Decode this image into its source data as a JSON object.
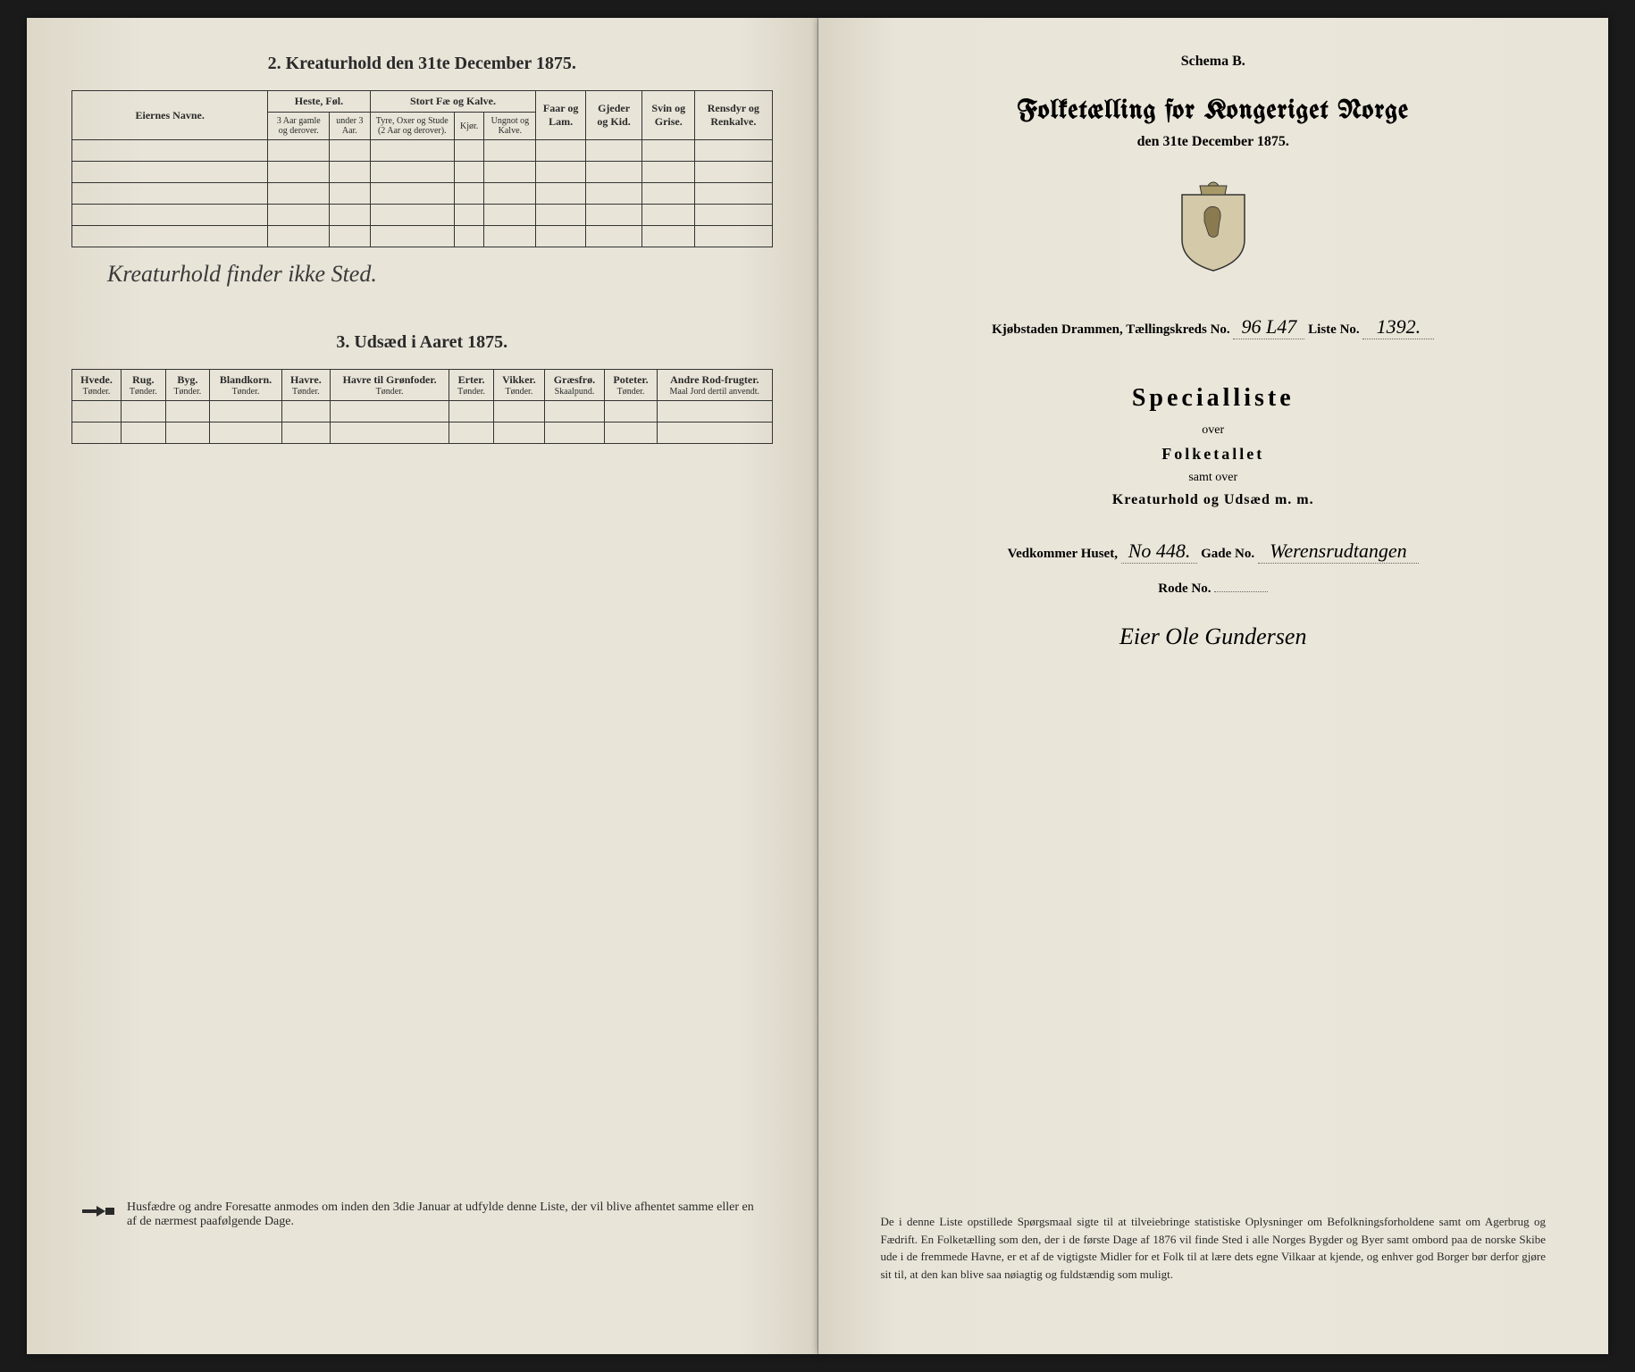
{
  "left_page": {
    "section2": {
      "title": "2. Kreaturhold den 31te December 1875.",
      "col_owner": "Eiernes Navne.",
      "group_heste": "Heste, Føl.",
      "heste_sub1": "3 Aar gamle og derover.",
      "heste_sub2": "under 3 Aar.",
      "group_stortfe": "Stort Fæ og Kalve.",
      "stortfe_sub1": "Tyre, Oxer og Stude (2 Aar og derover).",
      "stortfe_sub2": "Kjør.",
      "stortfe_sub3": "Ungnot og Kalve.",
      "col_faar": "Faar og Lam.",
      "col_gjeder": "Gjeder og Kid.",
      "col_svin": "Svin og Grise.",
      "col_rensdyr": "Rensdyr og Renkalve.",
      "handwritten_note": "Kreaturhold finder ikke Sted."
    },
    "section3": {
      "title": "3. Udsæd i Aaret 1875.",
      "cols": [
        {
          "h": "Hvede.",
          "s": "Tønder."
        },
        {
          "h": "Rug.",
          "s": "Tønder."
        },
        {
          "h": "Byg.",
          "s": "Tønder."
        },
        {
          "h": "Blandkorn.",
          "s": "Tønder."
        },
        {
          "h": "Havre.",
          "s": "Tønder."
        },
        {
          "h": "Havre til Grønfoder.",
          "s": "Tønder."
        },
        {
          "h": "Erter.",
          "s": "Tønder."
        },
        {
          "h": "Vikker.",
          "s": "Tønder."
        },
        {
          "h": "Græsfrø.",
          "s": "Skaalpund."
        },
        {
          "h": "Poteter.",
          "s": "Tønder."
        },
        {
          "h": "Andre Rod-frugter.",
          "s": "Maal Jord dertil anvendt."
        }
      ]
    },
    "footer": "Husfædre og andre Foresatte anmodes om inden den 3die Januar at udfylde denne Liste, der vil blive afhentet samme eller en af de nærmest paafølgende Dage."
  },
  "right_page": {
    "schema": "Schema B.",
    "main_title": "Folketælling for Kongeriget Norge",
    "sub_title": "den 31te December 1875.",
    "kjobstaden_label": "Kjøbstaden Drammen,",
    "taellingskreds_label": "Tællingskreds No.",
    "taellingskreds_val": "96 L47",
    "liste_label": "Liste No.",
    "liste_val": "1392.",
    "specialliste": "Specialliste",
    "over": "over",
    "folketallet": "Folketallet",
    "samt_over": "samt over",
    "kreaturhold": "Kreaturhold og Udsæd m. m.",
    "vedkommer_label": "Vedkommer Huset,",
    "vedkommer_val": "No 448.",
    "gade_label": "Gade No.",
    "gade_val": "Werensrudtangen",
    "rode_label": "Rode No.",
    "signature": "Eier Ole Gundersen",
    "decree": "De i denne Liste opstillede Spørgsmaal sigte til at tilveiebringe statistiske Oplysninger om Befolkningsforholdene samt om Agerbrug og Fædrift. En Folketælling som den, der i de første Dage af 1876 vil finde Sted i alle Norges Bygder og Byer samt ombord paa de norske Skibe ude i de fremmede Havne, er et af de vigtigste Midler for et Folk til at lære dets egne Vilkaar at kjende, og enhver god Borger bør derfor gjøre sit til, at den kan blive saa nøiagtig og fuldstændig som muligt."
  }
}
